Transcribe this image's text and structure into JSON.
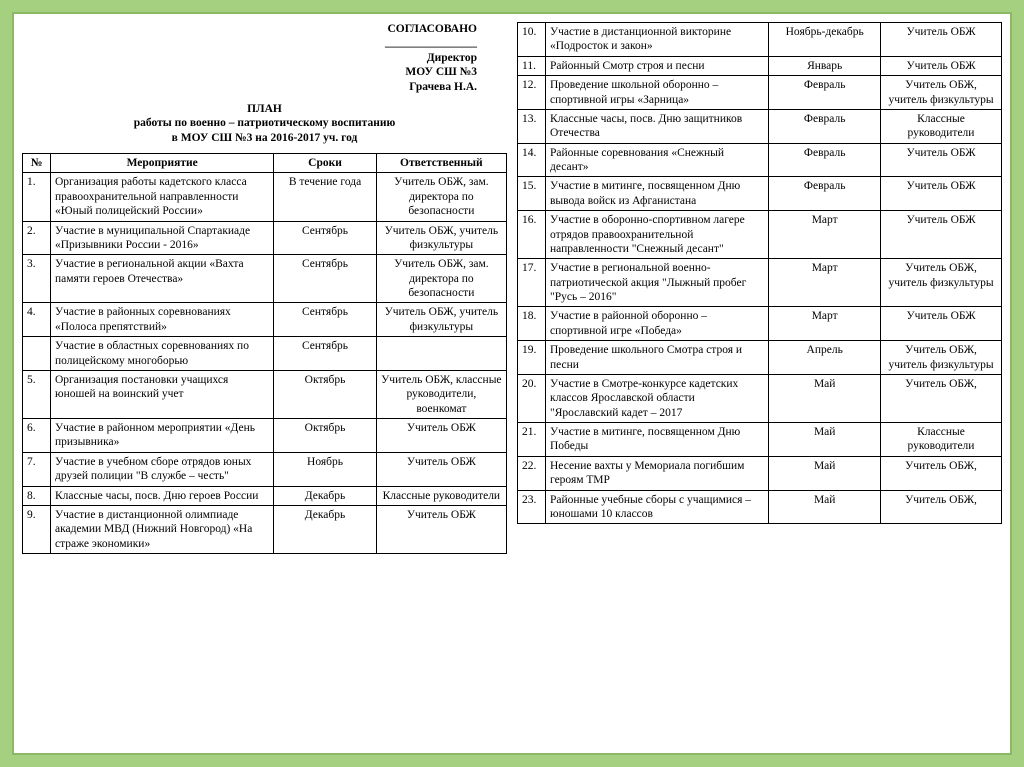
{
  "colors": {
    "page_bg": "#ffffff",
    "outer_bg": "#a4d07f",
    "border": "#8ab864",
    "table_border": "#000000",
    "text": "#000000"
  },
  "typography": {
    "font_family": "Times New Roman",
    "base_size_pt": 9,
    "header_bold": true
  },
  "header": {
    "approved": "СОГЛАСОВАНО",
    "underline": "________________",
    "l1": "Директор",
    "l2": "МОУ СШ №3",
    "l3": "Грачева Н.А."
  },
  "title": {
    "t1": "ПЛАН",
    "t2": "работы по военно – патриотическому воспитанию",
    "t3": "в МОУ СШ №3 на 2016-2017 уч. год"
  },
  "cols": {
    "num": "№",
    "event": "Мероприятие",
    "date": "Сроки",
    "resp": "Ответственный"
  },
  "rows1": [
    {
      "n": "1.",
      "e": "Организация работы кадетского класса правоохранительной направленности «Юный полицейский России»",
      "d": "В течение года",
      "r": "Учитель ОБЖ, зам. директора по безопасности"
    },
    {
      "n": "2.",
      "e": "Участие в муниципальной Спартакиаде «Призывники России - 2016»",
      "d": "Сентябрь",
      "r": "Учитель ОБЖ, учитель физкультуры"
    },
    {
      "n": "3.",
      "e": "Участие в региональной акции «Вахта памяти героев Отечества»",
      "d": "Сентябрь",
      "r": "Учитель ОБЖ, зам. директора по безопасности"
    },
    {
      "n": "4.",
      "e": "Участие в районных соревнованиях «Полоса препятствий»",
      "d": "Сентябрь",
      "r": "Учитель ОБЖ, учитель физкультуры"
    },
    {
      "n": "",
      "e": "Участие в областных соревнованиях по полицейскому многоборью",
      "d": "Сентябрь",
      "r": ""
    },
    {
      "n": "5.",
      "e": "Организация постановки учащихся юношей на воинский учет",
      "d": "Октябрь",
      "r": "Учитель ОБЖ, классные руководители, военкомат"
    },
    {
      "n": "6.",
      "e": "Участие в районном мероприятии «День призывника»",
      "d": "Октябрь",
      "r": "Учитель ОБЖ"
    },
    {
      "n": "7.",
      "e": "Участие в учебном сборе отрядов юных друзей полиции \"В службе – честь\"",
      "d": "Ноябрь",
      "r": "Учитель ОБЖ"
    },
    {
      "n": "8.",
      "e": "Классные часы, посв. Дню героев России",
      "d": "Декабрь",
      "r": "Классные руководители"
    },
    {
      "n": "9.",
      "e": "Участие в дистанционной олимпиаде академии МВД (Нижний Новгород) «На страже экономики»",
      "d": "Декабрь",
      "r": "Учитель ОБЖ"
    }
  ],
  "rows2": [
    {
      "n": "10.",
      "e": "Участие в дистанционной викторине «Подросток и закон»",
      "d": "Ноябрь-декабрь",
      "r": "Учитель ОБЖ"
    },
    {
      "n": "11.",
      "e": "Районный Смотр строя и песни",
      "d": "Январь",
      "r": "Учитель ОБЖ"
    },
    {
      "n": "12.",
      "e": "Проведение школьной оборонно – спортивной игры «Зарница»",
      "d": "Февраль",
      "r": "Учитель ОБЖ, учитель физкультуры"
    },
    {
      "n": "13.",
      "e": "Классные часы, посв. Дню защитников Отечества",
      "d": "Февраль",
      "r": "Классные руководители"
    },
    {
      "n": "14.",
      "e": "Районные соревнования «Снежный десант»",
      "d": "Февраль",
      "r": "Учитель ОБЖ"
    },
    {
      "n": "15.",
      "e": "Участие в митинге, посвященном Дню вывода войск из Афганистана",
      "d": "Февраль",
      "r": "Учитель ОБЖ"
    },
    {
      "n": "16.",
      "e": "Участие в оборонно-спортивном лагере отрядов правоохранительной направленности \"Снежный десант\"",
      "d": "Март",
      "r": "Учитель ОБЖ"
    },
    {
      "n": "17.",
      "e": "Участие в региональной военно-патриотической акция \"Лыжный пробег \"Русь – 2016\"",
      "d": "Март",
      "r": "Учитель ОБЖ, учитель физкультуры"
    },
    {
      "n": "18.",
      "e": "Участие в районной оборонно – спортивной игре «Победа»",
      "d": "Март",
      "r": "Учитель ОБЖ"
    },
    {
      "n": "19.",
      "e": "Проведение школьного Смотра строя и песни",
      "d": "Апрель",
      "r": "Учитель ОБЖ, учитель физкультуры"
    },
    {
      "n": "20.",
      "e": "Участие в Смотре-конкурсе кадетских классов Ярославской области \"Ярославский кадет – 2017",
      "d": "Май",
      "r": "Учитель ОБЖ,"
    },
    {
      "n": "21.",
      "e": "Участие в митинге, посвященном Дню Победы",
      "d": "Май",
      "r": "Классные руководители"
    },
    {
      "n": "22.",
      "e": "Несение вахты у Мемориала погибшим героям ТМР",
      "d": "Май",
      "r": "Учитель ОБЖ,"
    },
    {
      "n": "23.",
      "e": "Районные учебные сборы с учащимися – юношами 10 классов",
      "d": "Май",
      "r": "Учитель ОБЖ,"
    }
  ]
}
